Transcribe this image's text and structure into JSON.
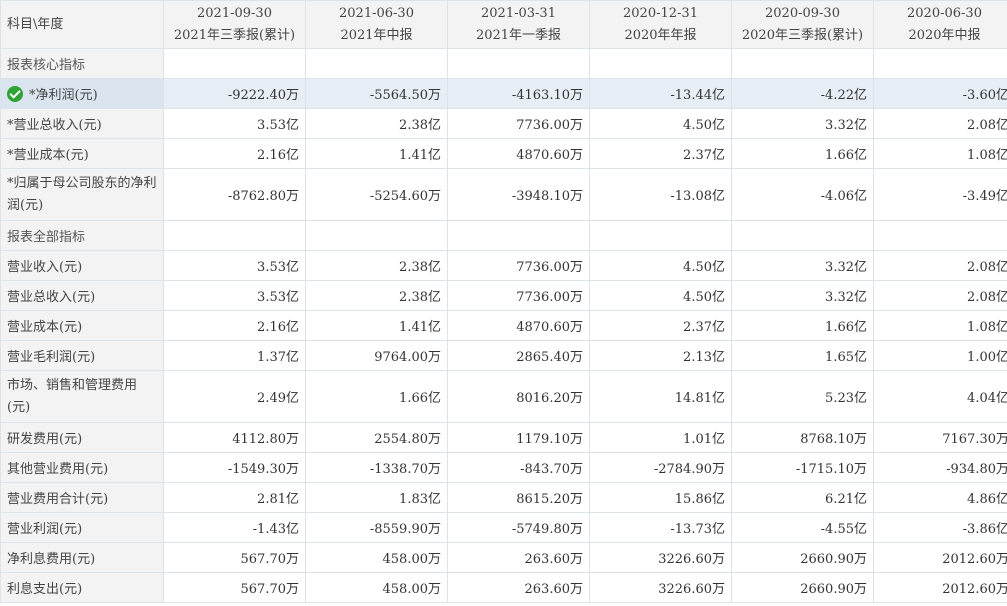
{
  "corner_label": "科目\\年度",
  "columns": [
    {
      "date": "2021-09-30",
      "period": "2021年三季报(累计)"
    },
    {
      "date": "2021-06-30",
      "period": "2021年中报"
    },
    {
      "date": "2021-03-31",
      "period": "2021年一季报"
    },
    {
      "date": "2020-12-31",
      "period": "2020年年报"
    },
    {
      "date": "2020-09-30",
      "period": "2020年三季报(累计)"
    },
    {
      "date": "2020-06-30",
      "period": "2020年中报"
    }
  ],
  "rows": [
    {
      "label": "报表核心指标",
      "values": [
        "",
        "",
        "",
        "",
        "",
        ""
      ]
    },
    {
      "label": "*净利润(元)",
      "values": [
        "-9222.40万",
        "-5564.50万",
        "-4163.10万",
        "-13.44亿",
        "-4.22亿",
        "-3.60亿"
      ]
    },
    {
      "label": "*营业总收入(元)",
      "values": [
        "3.53亿",
        "2.38亿",
        "7736.00万",
        "4.50亿",
        "3.32亿",
        "2.08亿"
      ]
    },
    {
      "label": "*营业成本(元)",
      "values": [
        "2.16亿",
        "1.41亿",
        "4870.60万",
        "2.37亿",
        "1.66亿",
        "1.08亿"
      ]
    },
    {
      "label": "*归属于母公司股东的净利润(元)",
      "values": [
        "-8762.80万",
        "-5254.60万",
        "-3948.10万",
        "-13.08亿",
        "-4.06亿",
        "-3.49亿"
      ]
    },
    {
      "label": "报表全部指标",
      "values": [
        "",
        "",
        "",
        "",
        "",
        ""
      ]
    },
    {
      "label": "营业收入(元)",
      "values": [
        "3.53亿",
        "2.38亿",
        "7736.00万",
        "4.50亿",
        "3.32亿",
        "2.08亿"
      ]
    },
    {
      "label": "营业总收入(元)",
      "values": [
        "3.53亿",
        "2.38亿",
        "7736.00万",
        "4.50亿",
        "3.32亿",
        "2.08亿"
      ]
    },
    {
      "label": "营业成本(元)",
      "values": [
        "2.16亿",
        "1.41亿",
        "4870.60万",
        "2.37亿",
        "1.66亿",
        "1.08亿"
      ]
    },
    {
      "label": "营业毛利润(元)",
      "values": [
        "1.37亿",
        "9764.00万",
        "2865.40万",
        "2.13亿",
        "1.65亿",
        "1.00亿"
      ]
    },
    {
      "label": "市场、销售和管理费用(元)",
      "values": [
        "2.49亿",
        "1.66亿",
        "8016.20万",
        "14.81亿",
        "5.23亿",
        "4.04亿"
      ]
    },
    {
      "label": "研发费用(元)",
      "values": [
        "4112.80万",
        "2554.80万",
        "1179.10万",
        "1.01亿",
        "8768.10万",
        "7167.30万"
      ]
    },
    {
      "label": "其他营业费用(元)",
      "values": [
        "-1549.30万",
        "-1338.70万",
        "-843.70万",
        "-2784.90万",
        "-1715.10万",
        "-934.80万"
      ]
    },
    {
      "label": "营业费用合计(元)",
      "values": [
        "2.81亿",
        "1.83亿",
        "8615.20万",
        "15.86亿",
        "6.21亿",
        "4.86亿"
      ]
    },
    {
      "label": "营业利润(元)",
      "values": [
        "-1.43亿",
        "-8559.90万",
        "-5749.80万",
        "-13.73亿",
        "-4.55亿",
        "-3.86亿"
      ]
    },
    {
      "label": "净利息费用(元)",
      "values": [
        "567.70万",
        "458.00万",
        "263.60万",
        "3226.60万",
        "2660.90万",
        "2012.60万"
      ]
    },
    {
      "label": "利息支出(元)",
      "values": [
        "567.70万",
        "458.00万",
        "263.60万",
        "3226.60万",
        "2660.90万",
        "2012.60万"
      ]
    }
  ]
}
